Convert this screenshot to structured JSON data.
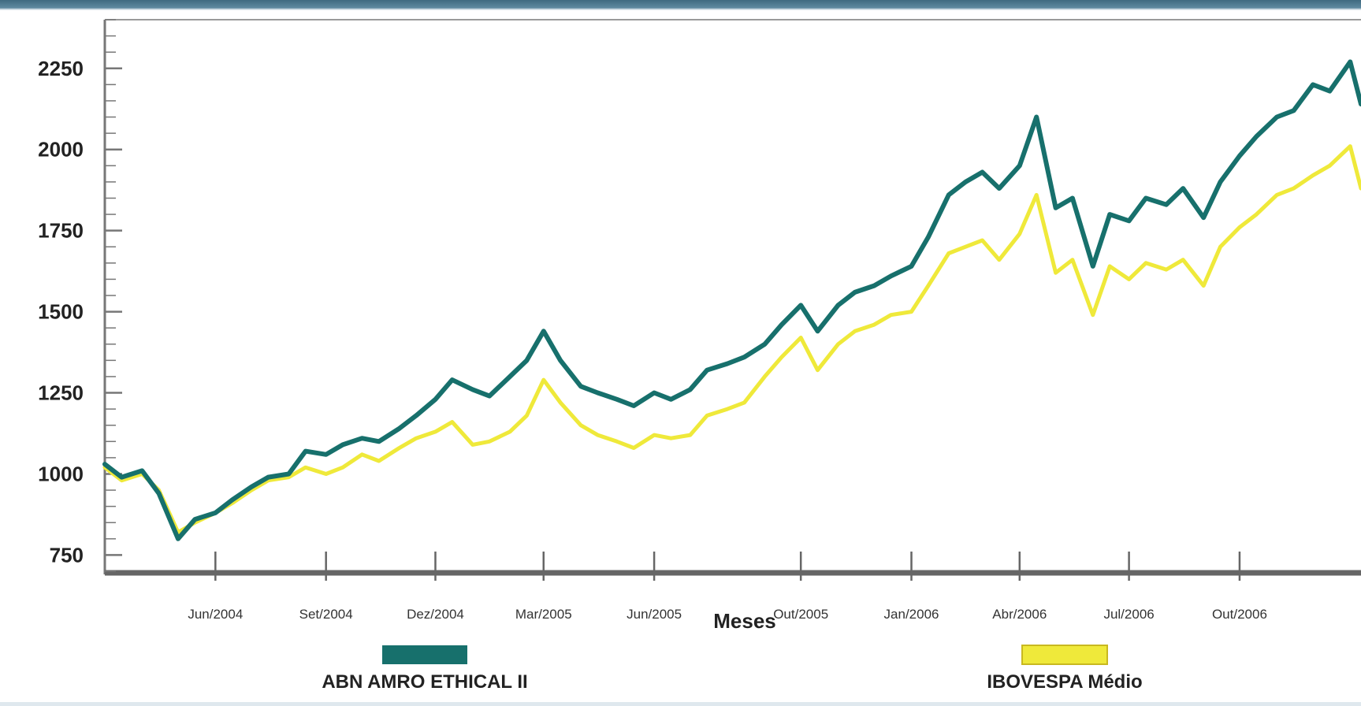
{
  "chart_data": {
    "type": "line",
    "ylim": [
      700,
      2400
    ],
    "yticks": [
      750,
      1000,
      1250,
      1500,
      1750,
      2000,
      2250
    ],
    "ytick_labels": [
      "750",
      "1000",
      "1250",
      "1500",
      "1750",
      "2000",
      "2250"
    ],
    "xlabel": "Meses",
    "ylabel": "",
    "x_tick_labels": [
      "Jun/2004",
      "Set/2004",
      "Dez/2004",
      "Mar/2005",
      "Jun/2005",
      "Out/2005",
      "Jan/2006",
      "Abr/2006",
      "Jul/2006",
      "Out/2006"
    ],
    "x_tick_dates": [
      "2004-06-01",
      "2004-09-01",
      "2004-12-01",
      "2005-03-01",
      "2005-06-01",
      "2005-10-01",
      "2006-01-01",
      "2006-04-01",
      "2006-07-01",
      "2006-10-01"
    ],
    "xlim": [
      "2004-03-01",
      "2007-01-10"
    ],
    "grid": false,
    "legend_position": "bottom",
    "series": [
      {
        "name": "ABN AMRO ETHICAL II",
        "color": "#17706c",
        "x": [
          "2004-03-01",
          "2004-03-15",
          "2004-04-01",
          "2004-04-15",
          "2004-05-01",
          "2004-05-15",
          "2004-06-01",
          "2004-06-15",
          "2004-07-01",
          "2004-07-15",
          "2004-08-01",
          "2004-08-15",
          "2004-09-01",
          "2004-09-15",
          "2004-10-01",
          "2004-10-15",
          "2004-11-01",
          "2004-11-15",
          "2004-12-01",
          "2004-12-15",
          "2005-01-01",
          "2005-01-15",
          "2005-02-01",
          "2005-02-15",
          "2005-03-01",
          "2005-03-15",
          "2005-04-01",
          "2005-04-15",
          "2005-05-01",
          "2005-05-15",
          "2005-06-01",
          "2005-06-15",
          "2005-07-01",
          "2005-07-15",
          "2005-08-01",
          "2005-08-15",
          "2005-09-01",
          "2005-09-15",
          "2005-10-01",
          "2005-10-15",
          "2005-11-01",
          "2005-11-15",
          "2005-12-01",
          "2005-12-15",
          "2006-01-01",
          "2006-01-15",
          "2006-02-01",
          "2006-02-15",
          "2006-03-01",
          "2006-03-15",
          "2006-04-01",
          "2006-04-15",
          "2006-05-01",
          "2006-05-15",
          "2006-06-01",
          "2006-06-15",
          "2006-07-01",
          "2006-07-15",
          "2006-08-01",
          "2006-08-15",
          "2006-09-01",
          "2006-09-15",
          "2006-10-01",
          "2006-10-15",
          "2006-11-01",
          "2006-11-15",
          "2006-12-01",
          "2006-12-15",
          "2007-01-01",
          "2007-01-10"
        ],
        "values": [
          1030,
          990,
          1010,
          940,
          800,
          860,
          880,
          920,
          960,
          990,
          1000,
          1070,
          1060,
          1090,
          1110,
          1100,
          1140,
          1180,
          1230,
          1290,
          1260,
          1240,
          1300,
          1350,
          1440,
          1350,
          1270,
          1250,
          1230,
          1210,
          1250,
          1230,
          1260,
          1320,
          1340,
          1360,
          1400,
          1460,
          1520,
          1440,
          1520,
          1560,
          1580,
          1610,
          1640,
          1730,
          1860,
          1900,
          1930,
          1880,
          1950,
          2100,
          1820,
          1850,
          1640,
          1800,
          1780,
          1850,
          1830,
          1880,
          1790,
          1900,
          1980,
          2040,
          2100,
          2120,
          2200,
          2180,
          2270,
          2140
        ]
      },
      {
        "name": "IBOVESPA Médio",
        "color": "#efe93a",
        "x": [
          "2004-03-01",
          "2004-03-15",
          "2004-04-01",
          "2004-04-15",
          "2004-05-01",
          "2004-05-15",
          "2004-06-01",
          "2004-06-15",
          "2004-07-01",
          "2004-07-15",
          "2004-08-01",
          "2004-08-15",
          "2004-09-01",
          "2004-09-15",
          "2004-10-01",
          "2004-10-15",
          "2004-11-01",
          "2004-11-15",
          "2004-12-01",
          "2004-12-15",
          "2005-01-01",
          "2005-01-15",
          "2005-02-01",
          "2005-02-15",
          "2005-03-01",
          "2005-03-15",
          "2005-04-01",
          "2005-04-15",
          "2005-05-01",
          "2005-05-15",
          "2005-06-01",
          "2005-06-15",
          "2005-07-01",
          "2005-07-15",
          "2005-08-01",
          "2005-08-15",
          "2005-09-01",
          "2005-09-15",
          "2005-10-01",
          "2005-10-15",
          "2005-11-01",
          "2005-11-15",
          "2005-12-01",
          "2005-12-15",
          "2006-01-01",
          "2006-01-15",
          "2006-02-01",
          "2006-02-15",
          "2006-03-01",
          "2006-03-15",
          "2006-04-01",
          "2006-04-15",
          "2006-05-01",
          "2006-05-15",
          "2006-06-01",
          "2006-06-15",
          "2006-07-01",
          "2006-07-15",
          "2006-08-01",
          "2006-08-15",
          "2006-09-01",
          "2006-09-15",
          "2006-10-01",
          "2006-10-15",
          "2006-11-01",
          "2006-11-15",
          "2006-12-01",
          "2006-12-15",
          "2007-01-01",
          "2007-01-10"
        ],
        "values": [
          1020,
          980,
          1000,
          950,
          820,
          850,
          880,
          910,
          950,
          980,
          990,
          1020,
          1000,
          1020,
          1060,
          1040,
          1080,
          1110,
          1130,
          1160,
          1090,
          1100,
          1130,
          1180,
          1290,
          1220,
          1150,
          1120,
          1100,
          1080,
          1120,
          1110,
          1120,
          1180,
          1200,
          1220,
          1300,
          1360,
          1420,
          1320,
          1400,
          1440,
          1460,
          1490,
          1500,
          1580,
          1680,
          1700,
          1720,
          1660,
          1740,
          1860,
          1620,
          1660,
          1490,
          1640,
          1600,
          1650,
          1630,
          1660,
          1580,
          1700,
          1760,
          1800,
          1860,
          1880,
          1920,
          1950,
          2010,
          1880
        ]
      }
    ]
  }
}
